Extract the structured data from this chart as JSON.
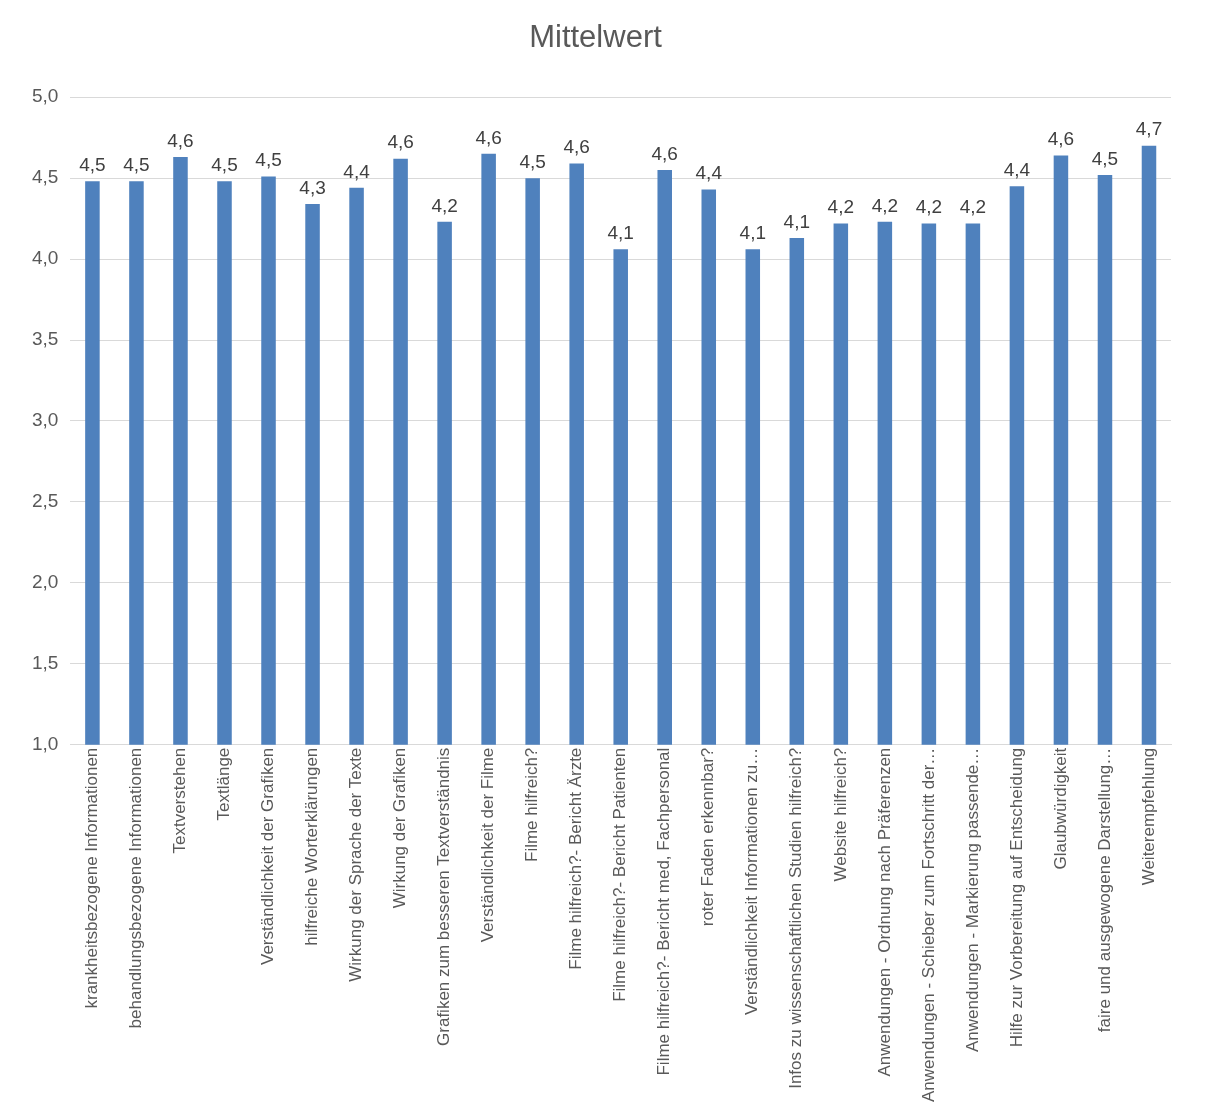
{
  "chart_data": {
    "type": "bar",
    "title": "Mittelwert",
    "categories": [
      "krankheitsbezogene Informationen",
      "behandlungsbezogene Informationen",
      "Textverstehen",
      "Textlänge",
      "Verständlichkeit der Grafiken",
      "hilfreiche Worterklärungen",
      "Wirkung der Sprache der Texte",
      "Wirkung der Grafiken",
      "Grafiken zum besseren Textverständnis",
      "Verständlichkeit der Filme",
      "Filme hilfreich?",
      "Filme hilfreich?- Bericht Ärzte",
      "Filme hilfreich?- Bericht Patienten",
      "Filme hilfreich?- Bericht med, Fachpersonal",
      "roter Faden erkennbar?",
      "Verständlichkeit Informationen zu…",
      "Infos zu wissenschaftlichen Studien hilfreich?",
      "Website hilfreich?",
      "Anwendungen - Ordnung nach Präferenzen",
      "Anwendungen - Schieber zum Fortschritt der…",
      "Anwendungen - Markierung passende…",
      "Hilfe zur Vorbereitung auf Entscheidung",
      "Glaubwürdigkeit",
      "faire und ausgewogene Darstellung…",
      "Weiterempfehlung"
    ],
    "values": [
      4.48,
      4.48,
      4.63,
      4.48,
      4.51,
      4.34,
      4.44,
      4.62,
      4.23,
      4.65,
      4.5,
      4.59,
      4.06,
      4.55,
      4.43,
      4.06,
      4.13,
      4.22,
      4.23,
      4.22,
      4.22,
      4.45,
      4.64,
      4.52,
      4.7
    ],
    "value_labels": [
      "4,5",
      "4,5",
      "4,6",
      "4,5",
      "4,5",
      "4,3",
      "4,4",
      "4,6",
      "4,2",
      "4,6",
      "4,5",
      "4,6",
      "4,1",
      "4,6",
      "4,4",
      "4,1",
      "4,1",
      "4,2",
      "4,2",
      "4,2",
      "4,2",
      "4,4",
      "4,6",
      "4,5",
      "4,7"
    ],
    "color": "#4f81bd",
    "ylim": [
      1,
      5
    ],
    "yticks": [
      {
        "value": 1,
        "label": "1,0"
      },
      {
        "value": 1.5,
        "label": "1,5"
      },
      {
        "value": 2,
        "label": "2,0"
      },
      {
        "value": 2.5,
        "label": "2,5"
      },
      {
        "value": 3,
        "label": "3,0"
      },
      {
        "value": 3.5,
        "label": "3,5"
      },
      {
        "value": 4,
        "label": "4,0"
      },
      {
        "value": 4.5,
        "label": "4,5"
      },
      {
        "value": 5,
        "label": "5,0"
      }
    ],
    "grid": "y",
    "legend": false
  }
}
